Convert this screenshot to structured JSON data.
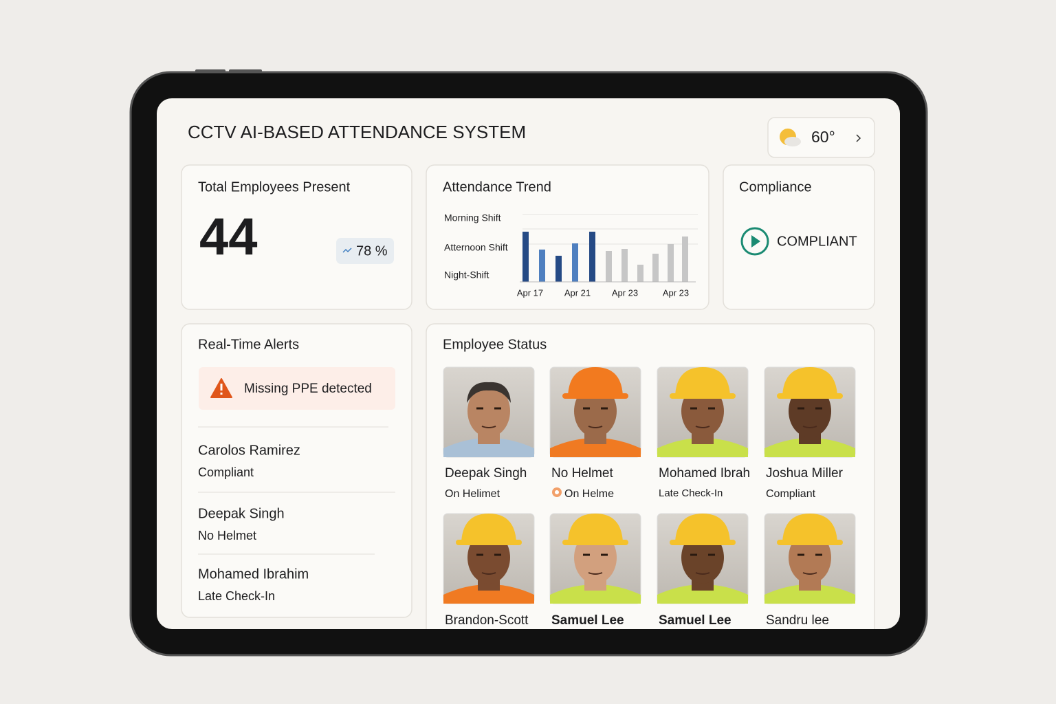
{
  "header": {
    "title": "CCTV AI-BASED ATTENDANCE SYSTEM"
  },
  "weather": {
    "temperature": "60°"
  },
  "total": {
    "title": "Total Employees Present",
    "value": "44",
    "badge": "78 %"
  },
  "trend": {
    "title": "Attendance Trend",
    "shifts": [
      "Morning Shift",
      "Atternoon Shift",
      "Night-Shift"
    ],
    "xlabels": [
      "Apr 17",
      "Apr 21",
      "Apr 23",
      "Apr 23"
    ],
    "ylim": [
      0,
      100
    ],
    "values": [
      73,
      47,
      38,
      56,
      73,
      45,
      48,
      25,
      41,
      55,
      66
    ],
    "colors": [
      "#254a85",
      "#4f7fbf",
      "#254a85",
      "#4f7fbf",
      "#254a85",
      "#c6c6c6",
      "#c6c6c6",
      "#c6c6c6",
      "#c6c6c6",
      "#c6c6c6",
      "#c6c6c6"
    ]
  },
  "compliance": {
    "title": "Compliance",
    "status": "COMPLIANT"
  },
  "alerts": {
    "title": "Real-Time Alerts",
    "banner": "Missing PPE detected",
    "items": [
      {
        "name": "Carolos Ramirez",
        "status": "Compliant",
        "color": "#137a6a"
      },
      {
        "name": "Deepak Singh",
        "status": "No Helmet",
        "color": "#d0601c"
      },
      {
        "name": "Mohamed Ibrahim",
        "status": "Late Check-In",
        "color": "#d0601c"
      }
    ]
  },
  "employees": {
    "title": "Employee Status",
    "people": [
      {
        "name": "Deepak Singh",
        "status": "On Helimet",
        "color": "#d0601c"
      },
      {
        "name": "No  Helmet",
        "status": "On Helme",
        "color": "#d0601c"
      },
      {
        "name": "Mohamed Ibrah",
        "status": "Late Check-In",
        "color": "#333333"
      },
      {
        "name": "Joshua Miller",
        "status": "Compliant",
        "color": "#137a6a"
      },
      {
        "name": "Brandon-Scott"
      },
      {
        "name": "Samuel Lee"
      },
      {
        "name": "Samuel Lee"
      },
      {
        "name": "Sandru lee"
      }
    ]
  }
}
